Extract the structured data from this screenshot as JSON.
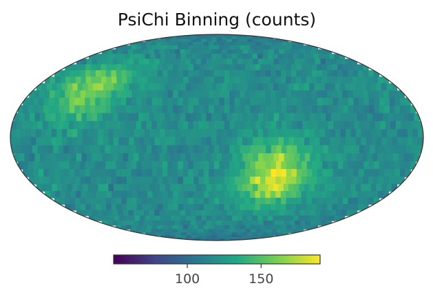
{
  "chart_data": {
    "type": "heatmap",
    "projection": "mollweide",
    "title": "PsiChi Binning (counts)",
    "colormap": "viridis",
    "colormap_stops": [
      "#440154",
      "#414487",
      "#2a788e",
      "#22a884",
      "#7ad151",
      "#fde725"
    ],
    "value_range": [
      50,
      190
    ],
    "colorbar": {
      "orientation": "horizontal",
      "placement": "bottom",
      "ticks": [
        100,
        150
      ],
      "tick_labels": [
        "100",
        "150"
      ]
    },
    "background_mean": 118,
    "hotspots": [
      {
        "lon": -125,
        "lat": 28,
        "peak": 168
      },
      {
        "lon": 55,
        "lat": -22,
        "peak": 188
      }
    ],
    "edge_color": "#333333"
  }
}
